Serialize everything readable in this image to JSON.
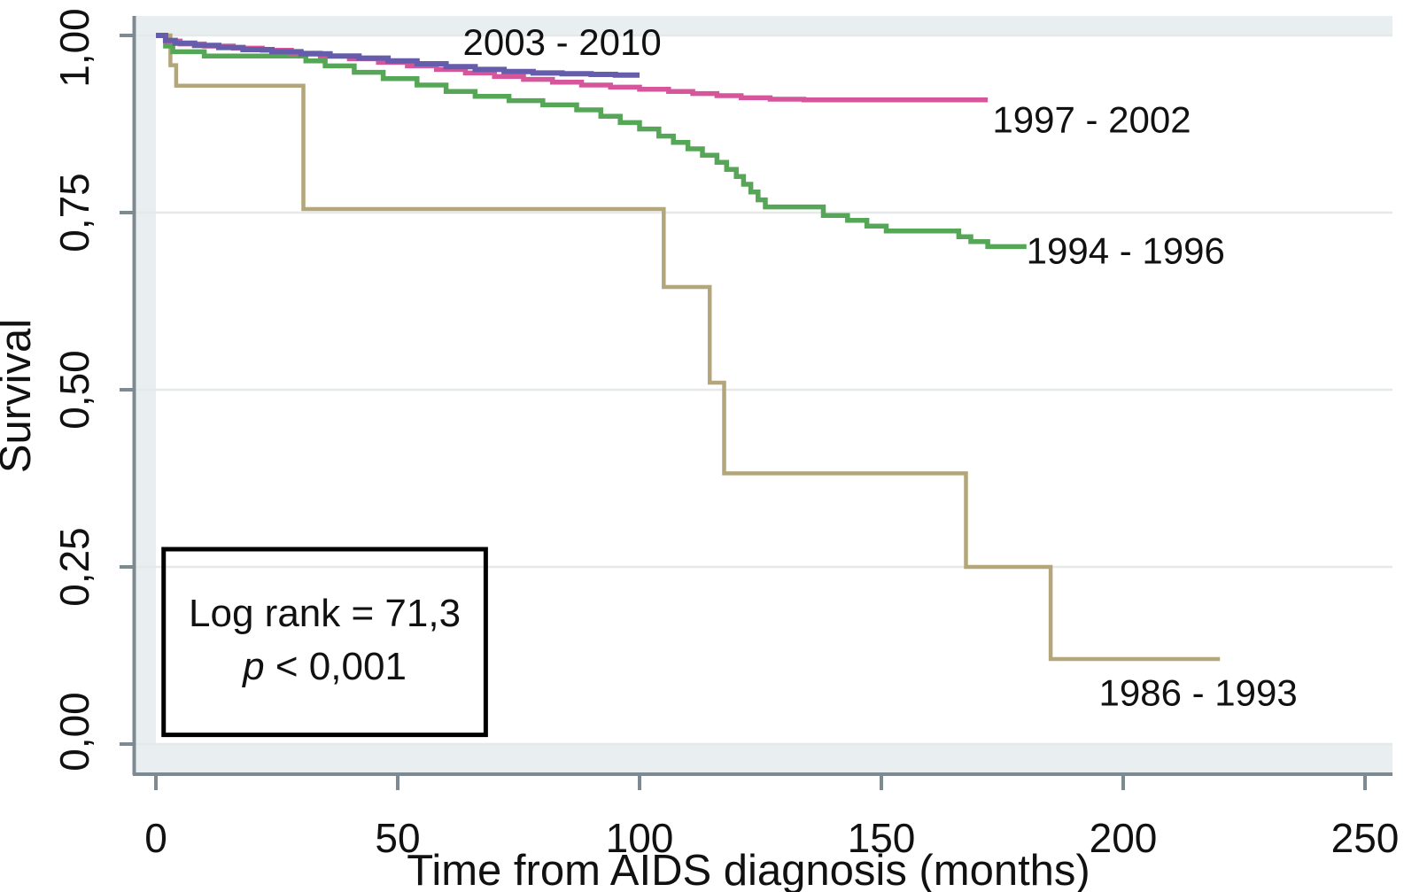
{
  "figure": {
    "kind": "kaplan-meier-survival-plot",
    "background": "#ffffff",
    "panel_margin_color": "#e9eef0",
    "grid_color": "#e6e9ea",
    "axis_color": "#7e8a92"
  },
  "chart_data": {
    "type": "line",
    "subtype": "step-survival-curves",
    "title": "",
    "xlabel": "Time from AIDS diagnosis (months)",
    "ylabel": "Survival",
    "xlim": [
      0,
      250
    ],
    "ylim": [
      0.0,
      1.0
    ],
    "grid": "horizontal",
    "decimal_style": "comma",
    "x_ticks": [
      {
        "value": 0,
        "label": "0"
      },
      {
        "value": 50,
        "label": "50"
      },
      {
        "value": 100,
        "label": "100"
      },
      {
        "value": 150,
        "label": "150"
      },
      {
        "value": 200,
        "label": "200"
      },
      {
        "value": 250,
        "label": "250"
      }
    ],
    "y_ticks": [
      {
        "value": 0.0,
        "label": "0,00"
      },
      {
        "value": 0.25,
        "label": "0,25"
      },
      {
        "value": 0.5,
        "label": "0,50"
      },
      {
        "value": 0.75,
        "label": "0,75"
      },
      {
        "value": 1.0,
        "label": "1,00"
      }
    ],
    "series": [
      {
        "name": "1986 - 1993",
        "color": "#b4a67b",
        "stroke_width": 4.5,
        "end_t": 220,
        "label_anchor": {
          "t": 215.5,
          "s": 0.073
        },
        "steps": [
          [
            0,
            1.0
          ],
          [
            3,
            0.958
          ],
          [
            4.2,
            0.929
          ],
          [
            30.5,
            0.755
          ],
          [
            105,
            0.645
          ],
          [
            114.5,
            0.51
          ],
          [
            117.5,
            0.382
          ],
          [
            167.5,
            0.25
          ],
          [
            185,
            0.12
          ]
        ]
      },
      {
        "name": "1994 - 1996",
        "color": "#55a757",
        "stroke_width": 5.5,
        "end_t": 180,
        "label_anchor": {
          "t": 200.5,
          "s": 0.697
        },
        "steps": [
          [
            0,
            1.0
          ],
          [
            2,
            0.985
          ],
          [
            3.5,
            0.977
          ],
          [
            10,
            0.971
          ],
          [
            31,
            0.964
          ],
          [
            35,
            0.957
          ],
          [
            41,
            0.948
          ],
          [
            47,
            0.939
          ],
          [
            54,
            0.93
          ],
          [
            60,
            0.921
          ],
          [
            66,
            0.914
          ],
          [
            73,
            0.908
          ],
          [
            80,
            0.902
          ],
          [
            87,
            0.895
          ],
          [
            92,
            0.886
          ],
          [
            96,
            0.877
          ],
          [
            100,
            0.868
          ],
          [
            104,
            0.858
          ],
          [
            107,
            0.849
          ],
          [
            110,
            0.84
          ],
          [
            113,
            0.831
          ],
          [
            116,
            0.821
          ],
          [
            118,
            0.811
          ],
          [
            120,
            0.801
          ],
          [
            121.5,
            0.79
          ],
          [
            123,
            0.779
          ],
          [
            124.5,
            0.768
          ],
          [
            126,
            0.758
          ],
          [
            138,
            0.746
          ],
          [
            143,
            0.739
          ],
          [
            147,
            0.731
          ],
          [
            151,
            0.724
          ],
          [
            166,
            0.716
          ],
          [
            168.5,
            0.709
          ],
          [
            172,
            0.702
          ]
        ]
      },
      {
        "name": "1997 - 2002",
        "color": "#d6569c",
        "stroke_width": 5.5,
        "end_t": 172,
        "label_anchor": {
          "t": 193.5,
          "s": 0.882
        },
        "steps": [
          [
            0,
            1.0
          ],
          [
            2,
            0.992
          ],
          [
            5,
            0.988
          ],
          [
            10,
            0.985
          ],
          [
            16,
            0.982
          ],
          [
            22,
            0.979
          ],
          [
            28,
            0.975
          ],
          [
            34,
            0.971
          ],
          [
            40,
            0.967
          ],
          [
            46,
            0.962
          ],
          [
            52,
            0.957
          ],
          [
            58,
            0.952
          ],
          [
            64,
            0.947
          ],
          [
            70,
            0.942
          ],
          [
            76,
            0.938
          ],
          [
            82,
            0.934
          ],
          [
            88,
            0.93
          ],
          [
            94,
            0.927
          ],
          [
            100,
            0.924
          ],
          [
            106,
            0.921
          ],
          [
            111,
            0.918
          ],
          [
            116,
            0.915
          ],
          [
            121,
            0.912
          ],
          [
            127,
            0.91
          ],
          [
            134,
            0.909
          ]
        ]
      },
      {
        "name": "2003 - 2010",
        "color": "#655cab",
        "stroke_width": 6,
        "end_t": 100,
        "label_anchor": {
          "t": 84,
          "s": 0.991
        },
        "steps": [
          [
            0,
            1.0
          ],
          [
            2,
            0.993
          ],
          [
            4,
            0.989
          ],
          [
            8,
            0.986
          ],
          [
            13,
            0.983
          ],
          [
            18,
            0.98
          ],
          [
            24,
            0.977
          ],
          [
            30,
            0.974
          ],
          [
            36,
            0.971
          ],
          [
            42,
            0.968
          ],
          [
            48,
            0.964
          ],
          [
            54,
            0.96
          ],
          [
            60,
            0.956
          ],
          [
            66,
            0.952
          ],
          [
            72,
            0.949
          ],
          [
            78,
            0.947
          ],
          [
            84,
            0.946
          ],
          [
            90,
            0.945
          ],
          [
            95,
            0.944
          ]
        ]
      }
    ],
    "annotation": {
      "line1": "Log rank = 71,3",
      "line2_italic": "p",
      "line2_rest": " < 0,001",
      "box_t_range": [
        1.6,
        68.2
      ],
      "box_s_range": [
        0.013,
        0.275
      ]
    }
  }
}
